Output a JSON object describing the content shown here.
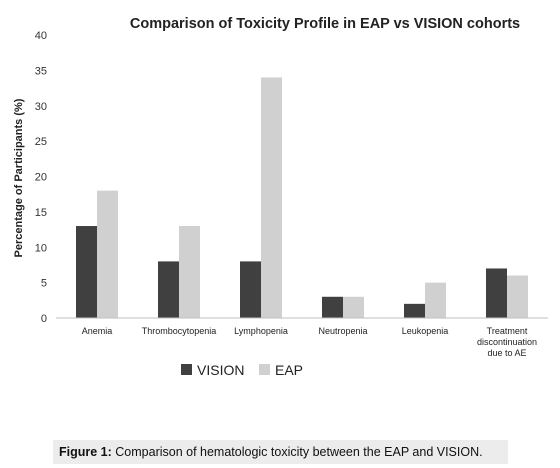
{
  "chart_data": {
    "type": "bar",
    "title": "Comparison of Toxicity Profile in EAP vs VISION cohorts",
    "xlabel": "",
    "ylabel": "Percentage of Participants (%)",
    "ylim": [
      0,
      40
    ],
    "yticks": [
      0,
      5,
      10,
      15,
      20,
      25,
      30,
      35,
      40
    ],
    "grid": false,
    "legend_position": "bottom-center",
    "categories": [
      [
        "Anemia"
      ],
      [
        "Thrombocytopenia"
      ],
      [
        "Lymphopenia"
      ],
      [
        "Neutropenia"
      ],
      [
        "Leukopenia"
      ],
      [
        "Treatment",
        "discontinuation",
        "due to AE"
      ]
    ],
    "series": [
      {
        "name": "VISION",
        "color": "#404040",
        "values": [
          13,
          8,
          8,
          3,
          2,
          7
        ]
      },
      {
        "name": "EAP",
        "color": "#d0d0d0",
        "values": [
          18,
          13,
          34,
          3,
          5,
          6
        ]
      }
    ]
  },
  "caption": {
    "label": "Figure 1:",
    "text": " Comparison of hematologic toxicity between the EAP and VISION."
  }
}
